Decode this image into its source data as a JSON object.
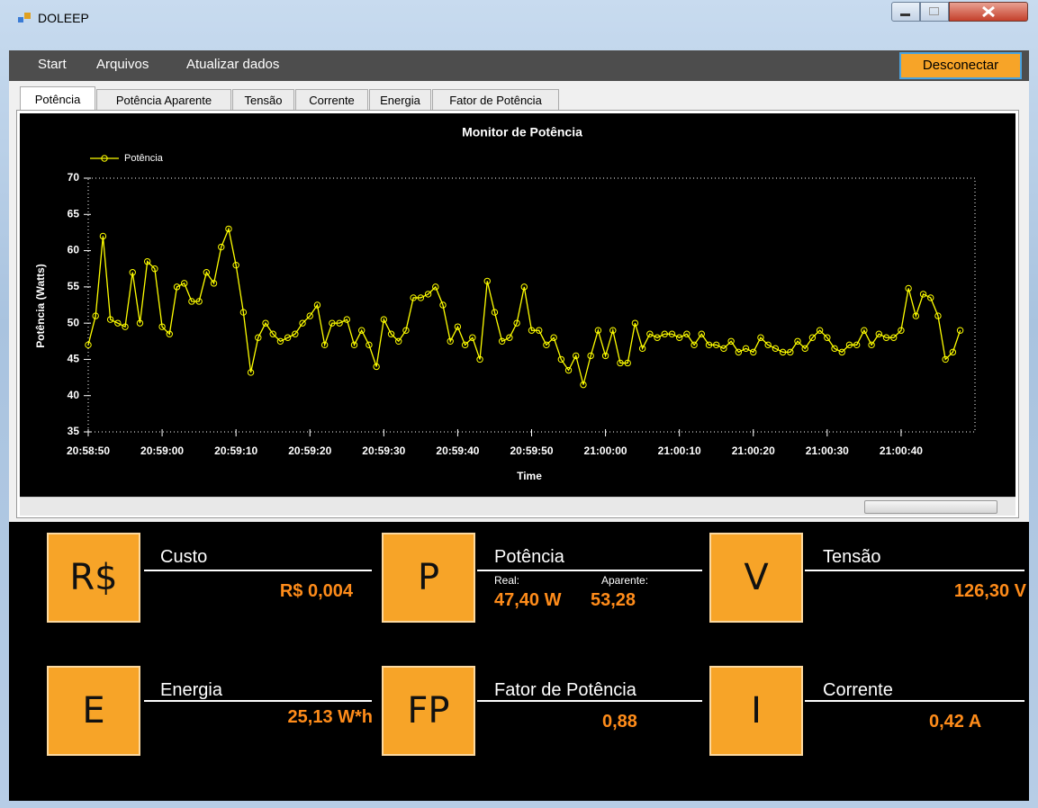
{
  "window": {
    "title": "DOLEEP"
  },
  "menu": {
    "items": [
      "Start",
      "Arquivos",
      "Atualizar dados"
    ],
    "button": "Desconectar"
  },
  "tabs": [
    "Potência",
    "Potência Aparente",
    "Tensão",
    "Corrente",
    "Energia",
    "Fator de Potência"
  ],
  "chart_data": {
    "type": "line",
    "title": "Monitor de Potência",
    "xlabel": "Time",
    "ylabel": "Potência (Watts)",
    "legend": "top-left",
    "x": [
      "20:58:50",
      "20:58:51",
      "20:58:52",
      "20:58:53",
      "20:58:54",
      "20:58:55",
      "20:58:56",
      "20:58:57",
      "20:58:58",
      "20:58:59",
      "20:59:00",
      "20:59:01",
      "20:59:02",
      "20:59:03",
      "20:59:04",
      "20:59:05",
      "20:59:06",
      "20:59:07",
      "20:59:08",
      "20:59:09",
      "20:59:10",
      "20:59:11",
      "20:59:12",
      "20:59:13",
      "20:59:14",
      "20:59:15",
      "20:59:16",
      "20:59:17",
      "20:59:18",
      "20:59:19",
      "20:59:20",
      "20:59:21",
      "20:59:22",
      "20:59:23",
      "20:59:24",
      "20:59:25",
      "20:59:26",
      "20:59:27",
      "20:59:28",
      "20:59:29",
      "20:59:30",
      "20:59:31",
      "20:59:32",
      "20:59:33",
      "20:59:34",
      "20:59:35",
      "20:59:36",
      "20:59:37",
      "20:59:38",
      "20:59:39",
      "20:59:40",
      "20:59:41",
      "20:59:42",
      "20:59:43",
      "20:59:44",
      "20:59:45",
      "20:59:46",
      "20:59:47",
      "20:59:48",
      "20:59:49",
      "20:59:50",
      "20:59:51",
      "20:59:52",
      "20:59:53",
      "20:59:54",
      "20:59:55",
      "20:59:56",
      "20:59:57",
      "20:59:58",
      "20:59:59",
      "21:00:00",
      "21:00:01",
      "21:00:02",
      "21:00:03",
      "21:00:04",
      "21:00:05",
      "21:00:06",
      "21:00:07",
      "21:00:08",
      "21:00:09",
      "21:00:10",
      "21:00:11",
      "21:00:12",
      "21:00:13",
      "21:00:14",
      "21:00:15",
      "21:00:16",
      "21:00:17",
      "21:00:18",
      "21:00:19",
      "21:00:20",
      "21:00:21",
      "21:00:22",
      "21:00:23",
      "21:00:24",
      "21:00:25",
      "21:00:26",
      "21:00:27",
      "21:00:28",
      "21:00:29",
      "21:00:30",
      "21:00:31",
      "21:00:32",
      "21:00:33",
      "21:00:34",
      "21:00:35",
      "21:00:36",
      "21:00:37",
      "21:00:38",
      "21:00:39",
      "21:00:40",
      "21:00:41",
      "21:00:42",
      "21:00:43",
      "21:00:44",
      "21:00:45",
      "21:00:46",
      "21:00:47",
      "21:00:48"
    ],
    "series": [
      {
        "name": "Potência",
        "color": "#ffff00",
        "values": [
          47,
          51,
          62,
          50.5,
          50,
          49.5,
          57,
          50,
          58.5,
          57.5,
          49.5,
          48.5,
          55,
          55.5,
          53,
          53,
          57,
          55.5,
          60.5,
          63,
          58,
          51.5,
          43.2,
          48,
          50,
          48.5,
          47.5,
          48,
          48.5,
          50,
          51,
          52.5,
          47,
          50,
          50,
          50.5,
          47,
          49,
          47,
          44,
          50.5,
          48.5,
          47.5,
          49,
          53.5,
          53.5,
          54,
          55,
          52.5,
          47.5,
          49.5,
          47,
          48,
          45,
          55.8,
          51.5,
          47.5,
          48,
          50,
          55,
          49,
          49,
          47,
          48,
          45,
          43.5,
          45.5,
          41.5,
          45.5,
          49,
          45.5,
          49,
          44.5,
          44.5,
          50,
          46.5,
          48.5,
          48,
          48.5,
          48.5,
          48,
          48.5,
          47,
          48.5,
          47,
          47,
          46.5,
          47.5,
          46,
          46.5,
          46,
          48,
          47,
          46.5,
          46,
          46,
          47.5,
          46.5,
          48,
          49,
          48,
          46.5,
          46,
          47,
          47,
          49,
          47,
          48.5,
          48,
          48,
          49,
          54.8,
          51,
          54,
          53.5,
          51,
          45,
          46,
          49
        ]
      }
    ],
    "xlim": [
      "20:58:50",
      "21:00:50"
    ],
    "xticks": [
      "20:58:50",
      "20:59:00",
      "20:59:10",
      "20:59:20",
      "20:59:30",
      "20:59:40",
      "20:59:50",
      "21:00:00",
      "21:00:10",
      "21:00:20",
      "21:00:30",
      "21:00:40"
    ],
    "ylim": [
      35,
      70
    ],
    "yticks": [
      35,
      40,
      45,
      50,
      55,
      60,
      65,
      70
    ]
  },
  "cards": [
    {
      "icon": "R$",
      "label": "Custo",
      "value": "R$ 0,004"
    },
    {
      "icon": "P",
      "label": "Potência",
      "sub_labels": [
        "Real:",
        "Aparente:"
      ],
      "values": [
        "47,40 W",
        "53,28"
      ]
    },
    {
      "icon": "V",
      "label": "Tensão",
      "value": "126,30 V"
    },
    {
      "icon": "E",
      "label": "Energia",
      "value": "25,13 W*h"
    },
    {
      "icon": "FP",
      "label": "Fator de Potência",
      "value": "0,88"
    },
    {
      "icon": "I",
      "label": "Corrente",
      "value": "0,42 A"
    }
  ]
}
